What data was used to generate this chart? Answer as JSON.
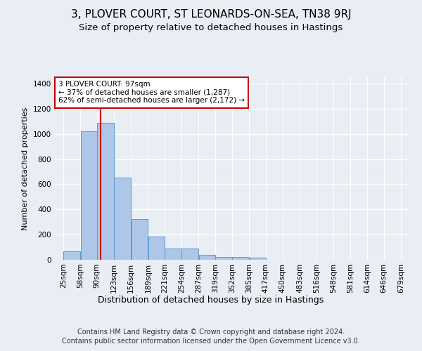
{
  "title": "3, PLOVER COURT, ST LEONARDS-ON-SEA, TN38 9RJ",
  "subtitle": "Size of property relative to detached houses in Hastings",
  "xlabel": "Distribution of detached houses by size in Hastings",
  "ylabel": "Number of detached properties",
  "footer_line1": "Contains HM Land Registry data © Crown copyright and database right 2024.",
  "footer_line2": "Contains public sector information licensed under the Open Government Licence v3.0.",
  "annotation_title": "3 PLOVER COURT: 97sqm",
  "annotation_line1": "← 37% of detached houses are smaller (1,287)",
  "annotation_line2": "62% of semi-detached houses are larger (2,172) →",
  "property_size": 97,
  "bins": [
    25,
    58,
    90,
    123,
    156,
    189,
    221,
    254,
    287,
    319,
    352,
    385,
    417,
    450,
    483,
    516,
    548,
    581,
    614,
    646,
    679
  ],
  "values": [
    65,
    1020,
    1090,
    650,
    325,
    185,
    90,
    90,
    40,
    25,
    20,
    15,
    0,
    0,
    0,
    0,
    0,
    0,
    0,
    0
  ],
  "bar_color": "#aec6e8",
  "bar_edge_color": "#5b9bd5",
  "vline_color": "#cc0000",
  "vline_x": 97,
  "annotation_box_facecolor": "#ffffff",
  "annotation_box_edgecolor": "#cc0000",
  "ylim": [
    0,
    1450
  ],
  "yticks": [
    0,
    200,
    400,
    600,
    800,
    1000,
    1200,
    1400
  ],
  "background_color": "#e8eef4",
  "plot_bg_color": "#e8eef4",
  "grid_color": "#ffffff",
  "title_fontsize": 11,
  "subtitle_fontsize": 9.5,
  "ylabel_fontsize": 8,
  "xlabel_fontsize": 9,
  "tick_fontsize": 7.5,
  "annotation_fontsize": 7.5,
  "footer_fontsize": 7
}
